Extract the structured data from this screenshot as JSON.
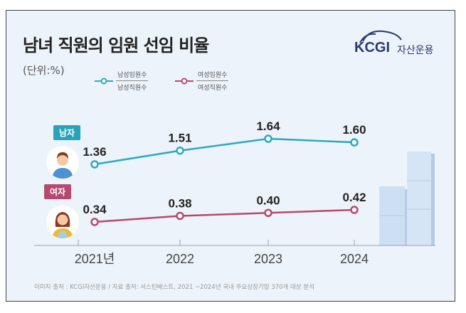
{
  "title": "남녀 직원의 임원 선임 비율",
  "unit": "(단위:%)",
  "logo": {
    "brand": "KCGI",
    "suffix": "자산운용"
  },
  "badges": {
    "male": "남자",
    "female": "여자"
  },
  "source": "이미지 출처 : KCGI자산운용 / 자료 출처: 서스틴베스트, 2021 ~2024년 국내 주요상장기업 370개 대상 분석",
  "colors": {
    "male": "#2aa9bf",
    "female": "#b5496f",
    "background": "#edf3fb"
  },
  "chart_data": {
    "type": "line",
    "title": "남녀 직원의 임원 선임 비율",
    "categories": [
      "2021년",
      "2022",
      "2023",
      "2024"
    ],
    "ylabel": "(단위:%)",
    "grid": false,
    "legend": "top-left",
    "series": [
      {
        "name": "남자",
        "legend_numerator": "남성임원수",
        "legend_denominator": "남성직원수",
        "values": [
          1.36,
          1.51,
          1.64,
          1.6
        ],
        "labels": [
          "1.36",
          "1.51",
          "1.64",
          "1.60"
        ]
      },
      {
        "name": "여자",
        "legend_numerator": "여성임원수",
        "legend_denominator": "여성직원수",
        "values": [
          0.34,
          0.38,
          0.4,
          0.42
        ],
        "labels": [
          "0.34",
          "0.38",
          "0.40",
          "0.42"
        ]
      }
    ]
  }
}
